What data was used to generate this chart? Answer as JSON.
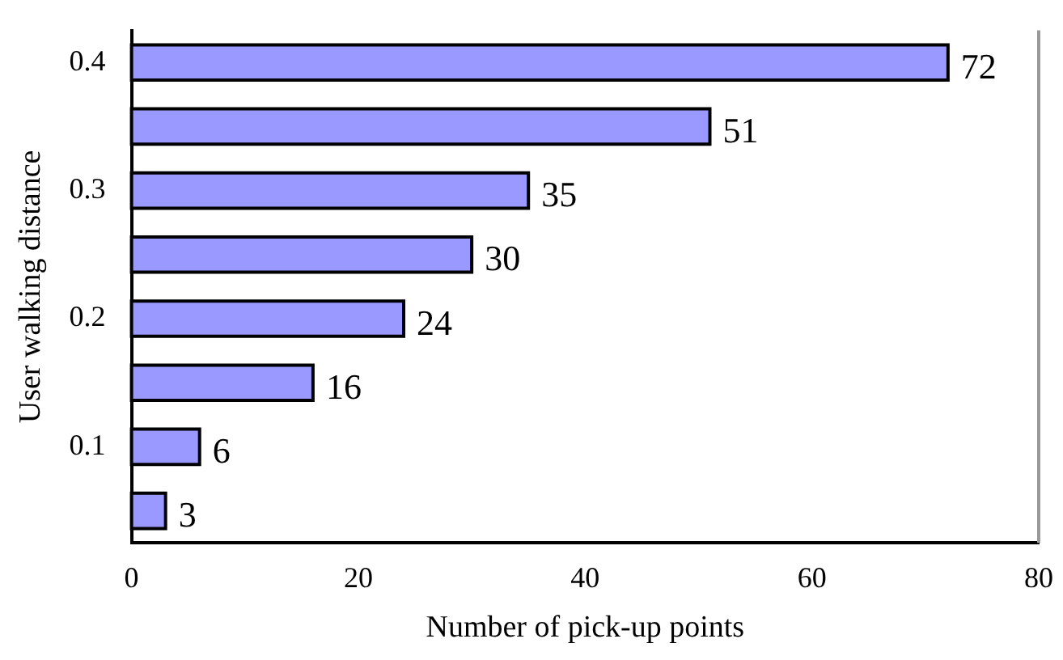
{
  "chart_data": {
    "type": "bar",
    "orientation": "horizontal",
    "xlabel": "Number of pick-up points",
    "ylabel": "User walking distance",
    "categories": [
      "0.4",
      null,
      "0.3",
      null,
      "0.2",
      null,
      "0.1",
      null
    ],
    "values": [
      72,
      51,
      35,
      30,
      24,
      16,
      6,
      3
    ],
    "color": "#9999ff",
    "xlim": [
      0,
      80
    ],
    "xticks": [
      0,
      20,
      40,
      60,
      80
    ],
    "grid": false,
    "legend": false,
    "data_labels": true
  }
}
